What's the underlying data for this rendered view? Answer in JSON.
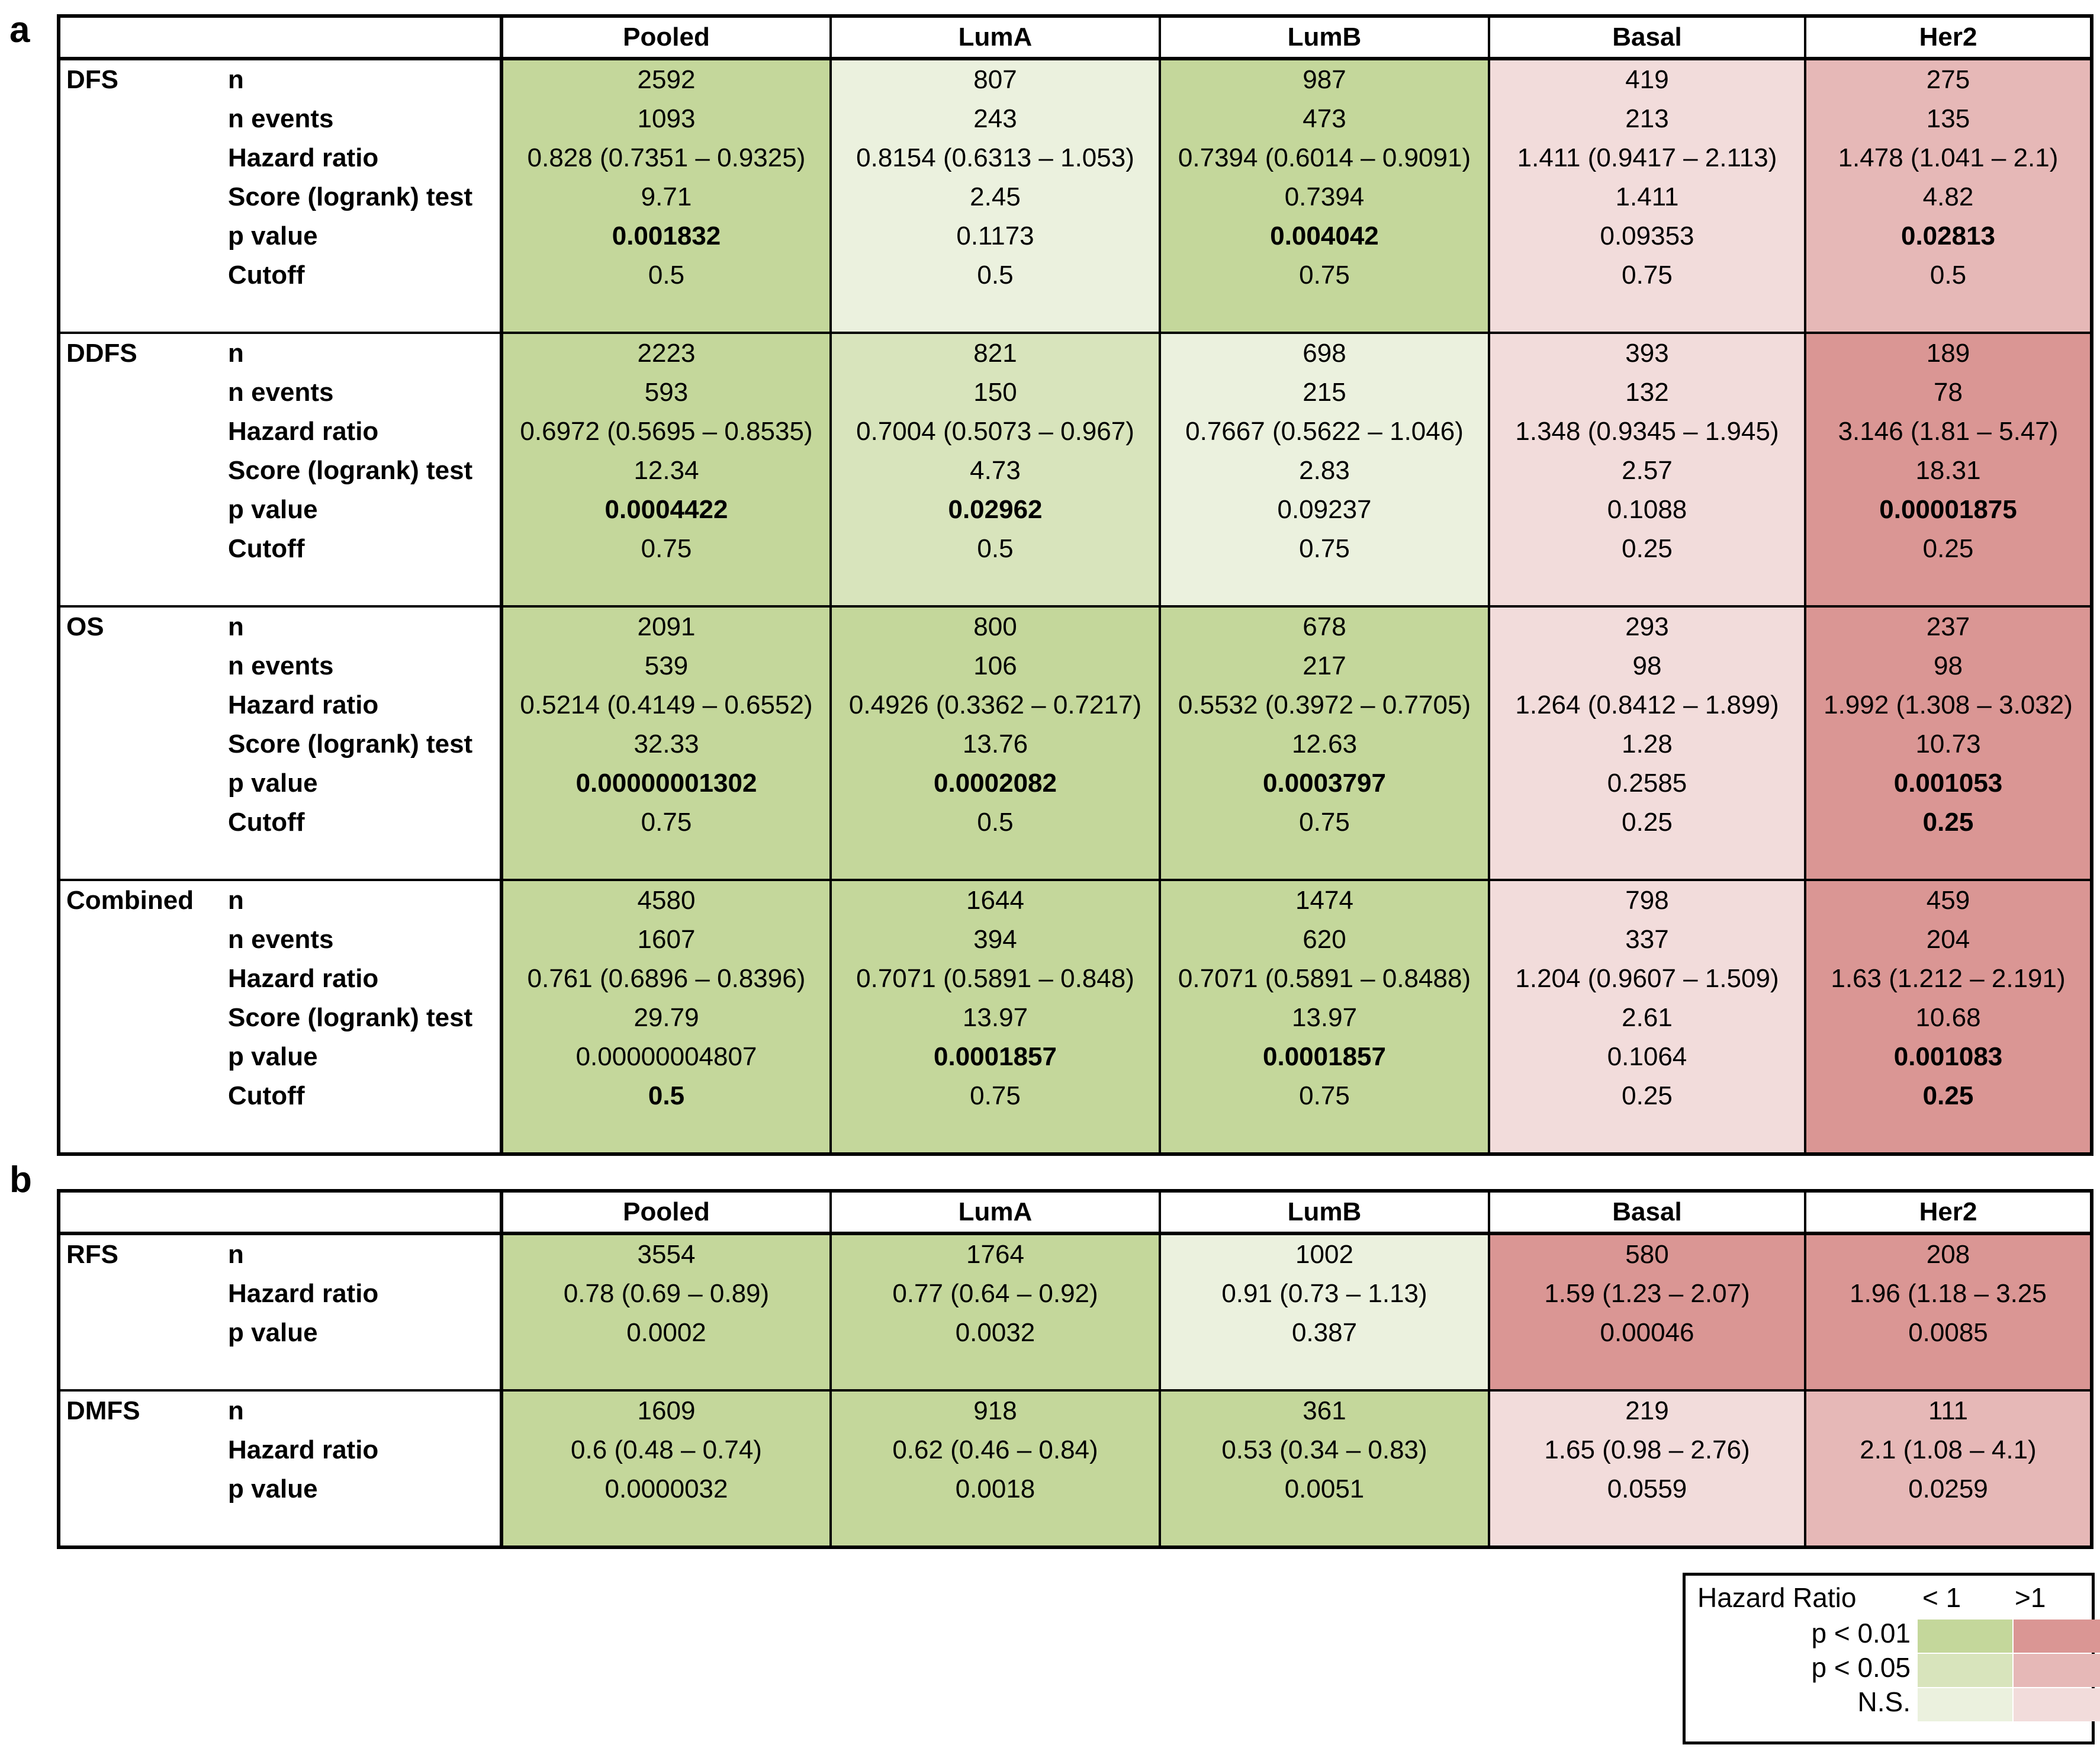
{
  "colors": {
    "green_p01": "#c4d79b",
    "green_p05": "#d8e4bc",
    "green_ns": "#ebf1de",
    "red_p01": "#da9694",
    "red_p05": "#e6b8b7",
    "red_ns": "#f2dcdb"
  },
  "panel_a": {
    "letter": "a",
    "columns": [
      "Pooled",
      "LumA",
      "LumB",
      "Basal",
      "Her2"
    ],
    "sections": [
      {
        "name": "DFS",
        "metrics": [
          "n",
          "n events",
          "Hazard ratio",
          "Score (logrank) test",
          "p value",
          "Cutoff"
        ],
        "colors": [
          "green_p01",
          "green_ns",
          "green_p01",
          "red_ns",
          "red_p05"
        ],
        "values": [
          [
            "2592",
            "1093",
            "0.828 (0.7351 – 0.9325)",
            "9.71",
            "0.001832",
            "0.5"
          ],
          [
            "807",
            "243",
            "0.8154 (0.6313 – 1.053)",
            "2.45",
            "0.1173",
            "0.5"
          ],
          [
            "987",
            "473",
            "0.7394 (0.6014 – 0.9091)",
            "0.7394",
            "0.004042",
            "0.75"
          ],
          [
            "419",
            "213",
            "1.411 (0.9417 – 2.113)",
            "1.411",
            "0.09353",
            "0.75"
          ],
          [
            "275",
            "135",
            "1.478 (1.041 – 2.1)",
            "4.82",
            "0.02813",
            "0.5"
          ]
        ],
        "bold": [
          [
            4
          ],
          [],
          [
            4
          ],
          [],
          [
            4
          ]
        ]
      },
      {
        "name": "DDFS",
        "metrics": [
          "n",
          "n events",
          "Hazard ratio",
          "Score (logrank) test",
          "p value",
          "Cutoff"
        ],
        "colors": [
          "green_p01",
          "green_p05",
          "green_ns",
          "red_ns",
          "red_p01"
        ],
        "values": [
          [
            "2223",
            "593",
            "0.6972 (0.5695 – 0.8535)",
            "12.34",
            "0.0004422",
            "0.75"
          ],
          [
            "821",
            "150",
            "0.7004 (0.5073 – 0.967)",
            "4.73",
            "0.02962",
            "0.5"
          ],
          [
            "698",
            "215",
            "0.7667 (0.5622 – 1.046)",
            "2.83",
            "0.09237",
            "0.75"
          ],
          [
            "393",
            "132",
            "1.348 (0.9345 – 1.945)",
            "2.57",
            "0.1088",
            "0.25"
          ],
          [
            "189",
            "78",
            "3.146 (1.81 – 5.47)",
            "18.31",
            "0.00001875",
            "0.25"
          ]
        ],
        "bold": [
          [
            4
          ],
          [
            4
          ],
          [],
          [],
          [
            4
          ]
        ]
      },
      {
        "name": "OS",
        "metrics": [
          "n",
          "n events",
          "Hazard ratio",
          "Score (logrank) test",
          "p value",
          "Cutoff"
        ],
        "colors": [
          "green_p01",
          "green_p01",
          "green_p01",
          "red_ns",
          "red_p01"
        ],
        "values": [
          [
            "2091",
            "539",
            "0.5214 (0.4149 – 0.6552)",
            "32.33",
            "0.00000001302",
            "0.75"
          ],
          [
            "800",
            "106",
            "0.4926 (0.3362 – 0.7217)",
            "13.76",
            "0.0002082",
            "0.5"
          ],
          [
            "678",
            "217",
            "0.5532 (0.3972 – 0.7705)",
            "12.63",
            "0.0003797",
            "0.75"
          ],
          [
            "293",
            "98",
            "1.264 (0.8412 – 1.899)",
            "1.28",
            "0.2585",
            "0.25"
          ],
          [
            "237",
            "98",
            "1.992 (1.308 – 3.032)",
            "10.73",
            "0.001053",
            "0.25"
          ]
        ],
        "bold": [
          [
            4
          ],
          [
            4
          ],
          [
            4
          ],
          [],
          [
            4,
            5
          ]
        ]
      },
      {
        "name": "Combined",
        "metrics": [
          "n",
          "n events",
          "Hazard ratio",
          "Score (logrank) test",
          "p value",
          "Cutoff"
        ],
        "colors": [
          "green_p01",
          "green_p01",
          "green_p01",
          "red_ns",
          "red_p01"
        ],
        "values": [
          [
            "4580",
            "1607",
            "0.761 (0.6896 – 0.8396)",
            "29.79",
            "0.00000004807",
            "0.5"
          ],
          [
            "1644",
            "394",
            "0.7071 (0.5891 – 0.848)",
            "13.97",
            "0.0001857",
            "0.75"
          ],
          [
            "1474",
            "620",
            "0.7071 (0.5891 – 0.8488)",
            "13.97",
            "0.0001857",
            "0.75"
          ],
          [
            "798",
            "337",
            "1.204 (0.9607 – 1.509)",
            "2.61",
            "0.1064",
            "0.25"
          ],
          [
            "459",
            "204",
            "1.63 (1.212 – 2.191)",
            "10.68",
            "0.001083",
            "0.25"
          ]
        ],
        "bold": [
          [
            5
          ],
          [
            4
          ],
          [
            4
          ],
          [],
          [
            4,
            5
          ]
        ]
      }
    ]
  },
  "panel_b": {
    "letter": "b",
    "columns": [
      "Pooled",
      "LumA",
      "LumB",
      "Basal",
      "Her2"
    ],
    "sections": [
      {
        "name": "RFS",
        "metrics": [
          "n",
          "Hazard ratio",
          "p value"
        ],
        "colors": [
          "green_p01",
          "green_p01",
          "green_ns",
          "red_p01",
          "red_p01"
        ],
        "values": [
          [
            "3554",
            "0.78 (0.69 – 0.89)",
            "0.0002"
          ],
          [
            "1764",
            "0.77 (0.64 – 0.92)",
            "0.0032"
          ],
          [
            "1002",
            "0.91 (0.73 – 1.13)",
            "0.387"
          ],
          [
            "580",
            "1.59 (1.23 – 2.07)",
            "0.00046"
          ],
          [
            "208",
            "1.96 (1.18 – 3.25",
            "0.0085"
          ]
        ],
        "bold": [
          [],
          [],
          [],
          [],
          []
        ]
      },
      {
        "name": "DMFS",
        "metrics": [
          "n",
          "Hazard ratio",
          "p value"
        ],
        "colors": [
          "green_p01",
          "green_p01",
          "green_p01",
          "red_ns",
          "red_p05"
        ],
        "values": [
          [
            "1609",
            "0.6 (0.48 – 0.74)",
            "0.0000032"
          ],
          [
            "918",
            "0.62 (0.46 – 0.84)",
            "0.0018"
          ],
          [
            "361",
            "0.53 (0.34 – 0.83)",
            "0.0051"
          ],
          [
            "219",
            "1.65 (0.98 – 2.76)",
            "0.0559"
          ],
          [
            "111",
            "2.1 (1.08 – 4.1)",
            "0.0259"
          ]
        ],
        "bold": [
          [],
          [],
          [],
          [],
          []
        ]
      }
    ]
  },
  "legend": {
    "title": "Hazard Ratio",
    "col_lt": "< 1",
    "col_gt": ">1",
    "rows": [
      {
        "label": "p < 0.01",
        "green": "green_p01",
        "red": "red_p01"
      },
      {
        "label": "p < 0.05",
        "green": "green_p05",
        "red": "red_p05"
      },
      {
        "label": "N.S.",
        "green": "green_ns",
        "red": "red_ns"
      }
    ]
  }
}
